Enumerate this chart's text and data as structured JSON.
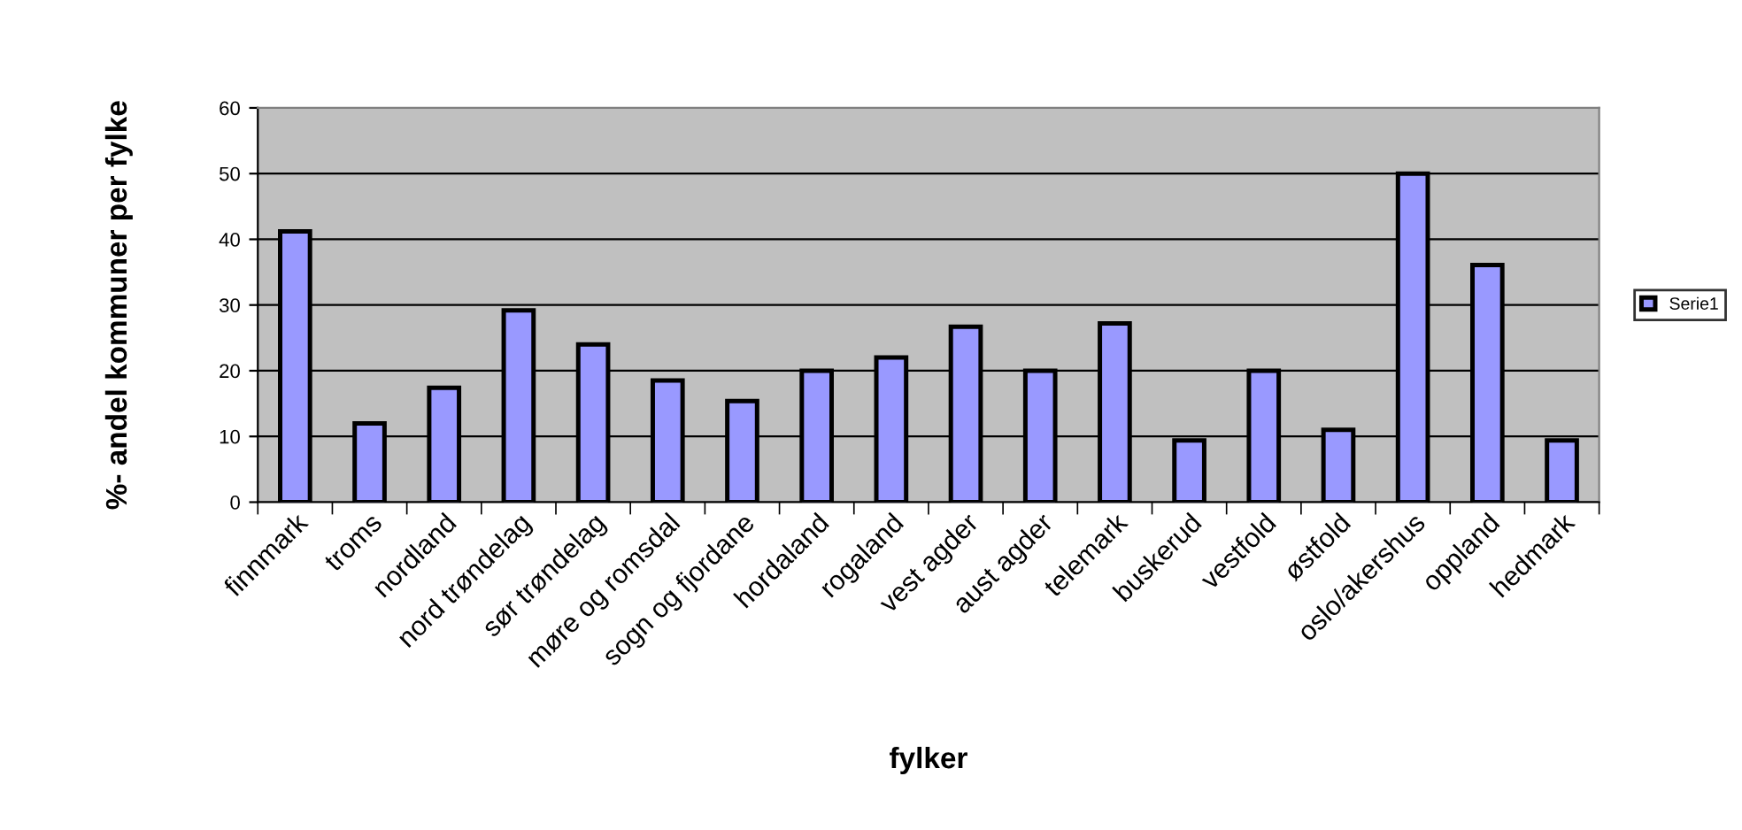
{
  "chart_data": {
    "type": "bar",
    "xlabel": "fylker",
    "ylabel": "%- andel kommuner per fylke",
    "categories": [
      "finnmark",
      "troms",
      "nordland",
      "nord trøndelag",
      "sør trøndelag",
      "møre og romsdal",
      "sogn og fjordane",
      "hordaland",
      "rogaland",
      "vest agder",
      "aust agder",
      "telemark",
      "buskerud",
      "vestfold",
      "østfold",
      "oslo/akershus",
      "oppland",
      "hedmark"
    ],
    "series": [
      {
        "name": "Serie1",
        "color": "#9999ff",
        "values": [
          41.2,
          12,
          17.4,
          29.2,
          24,
          18.5,
          15.4,
          20,
          22,
          26.7,
          20,
          27.2,
          9.4,
          20,
          11,
          50,
          36.1,
          9.4
        ]
      }
    ],
    "ylim": [
      0,
      60
    ],
    "yticks": [
      0,
      10,
      20,
      30,
      40,
      50,
      60
    ],
    "grid": "y",
    "legend": "right"
  }
}
